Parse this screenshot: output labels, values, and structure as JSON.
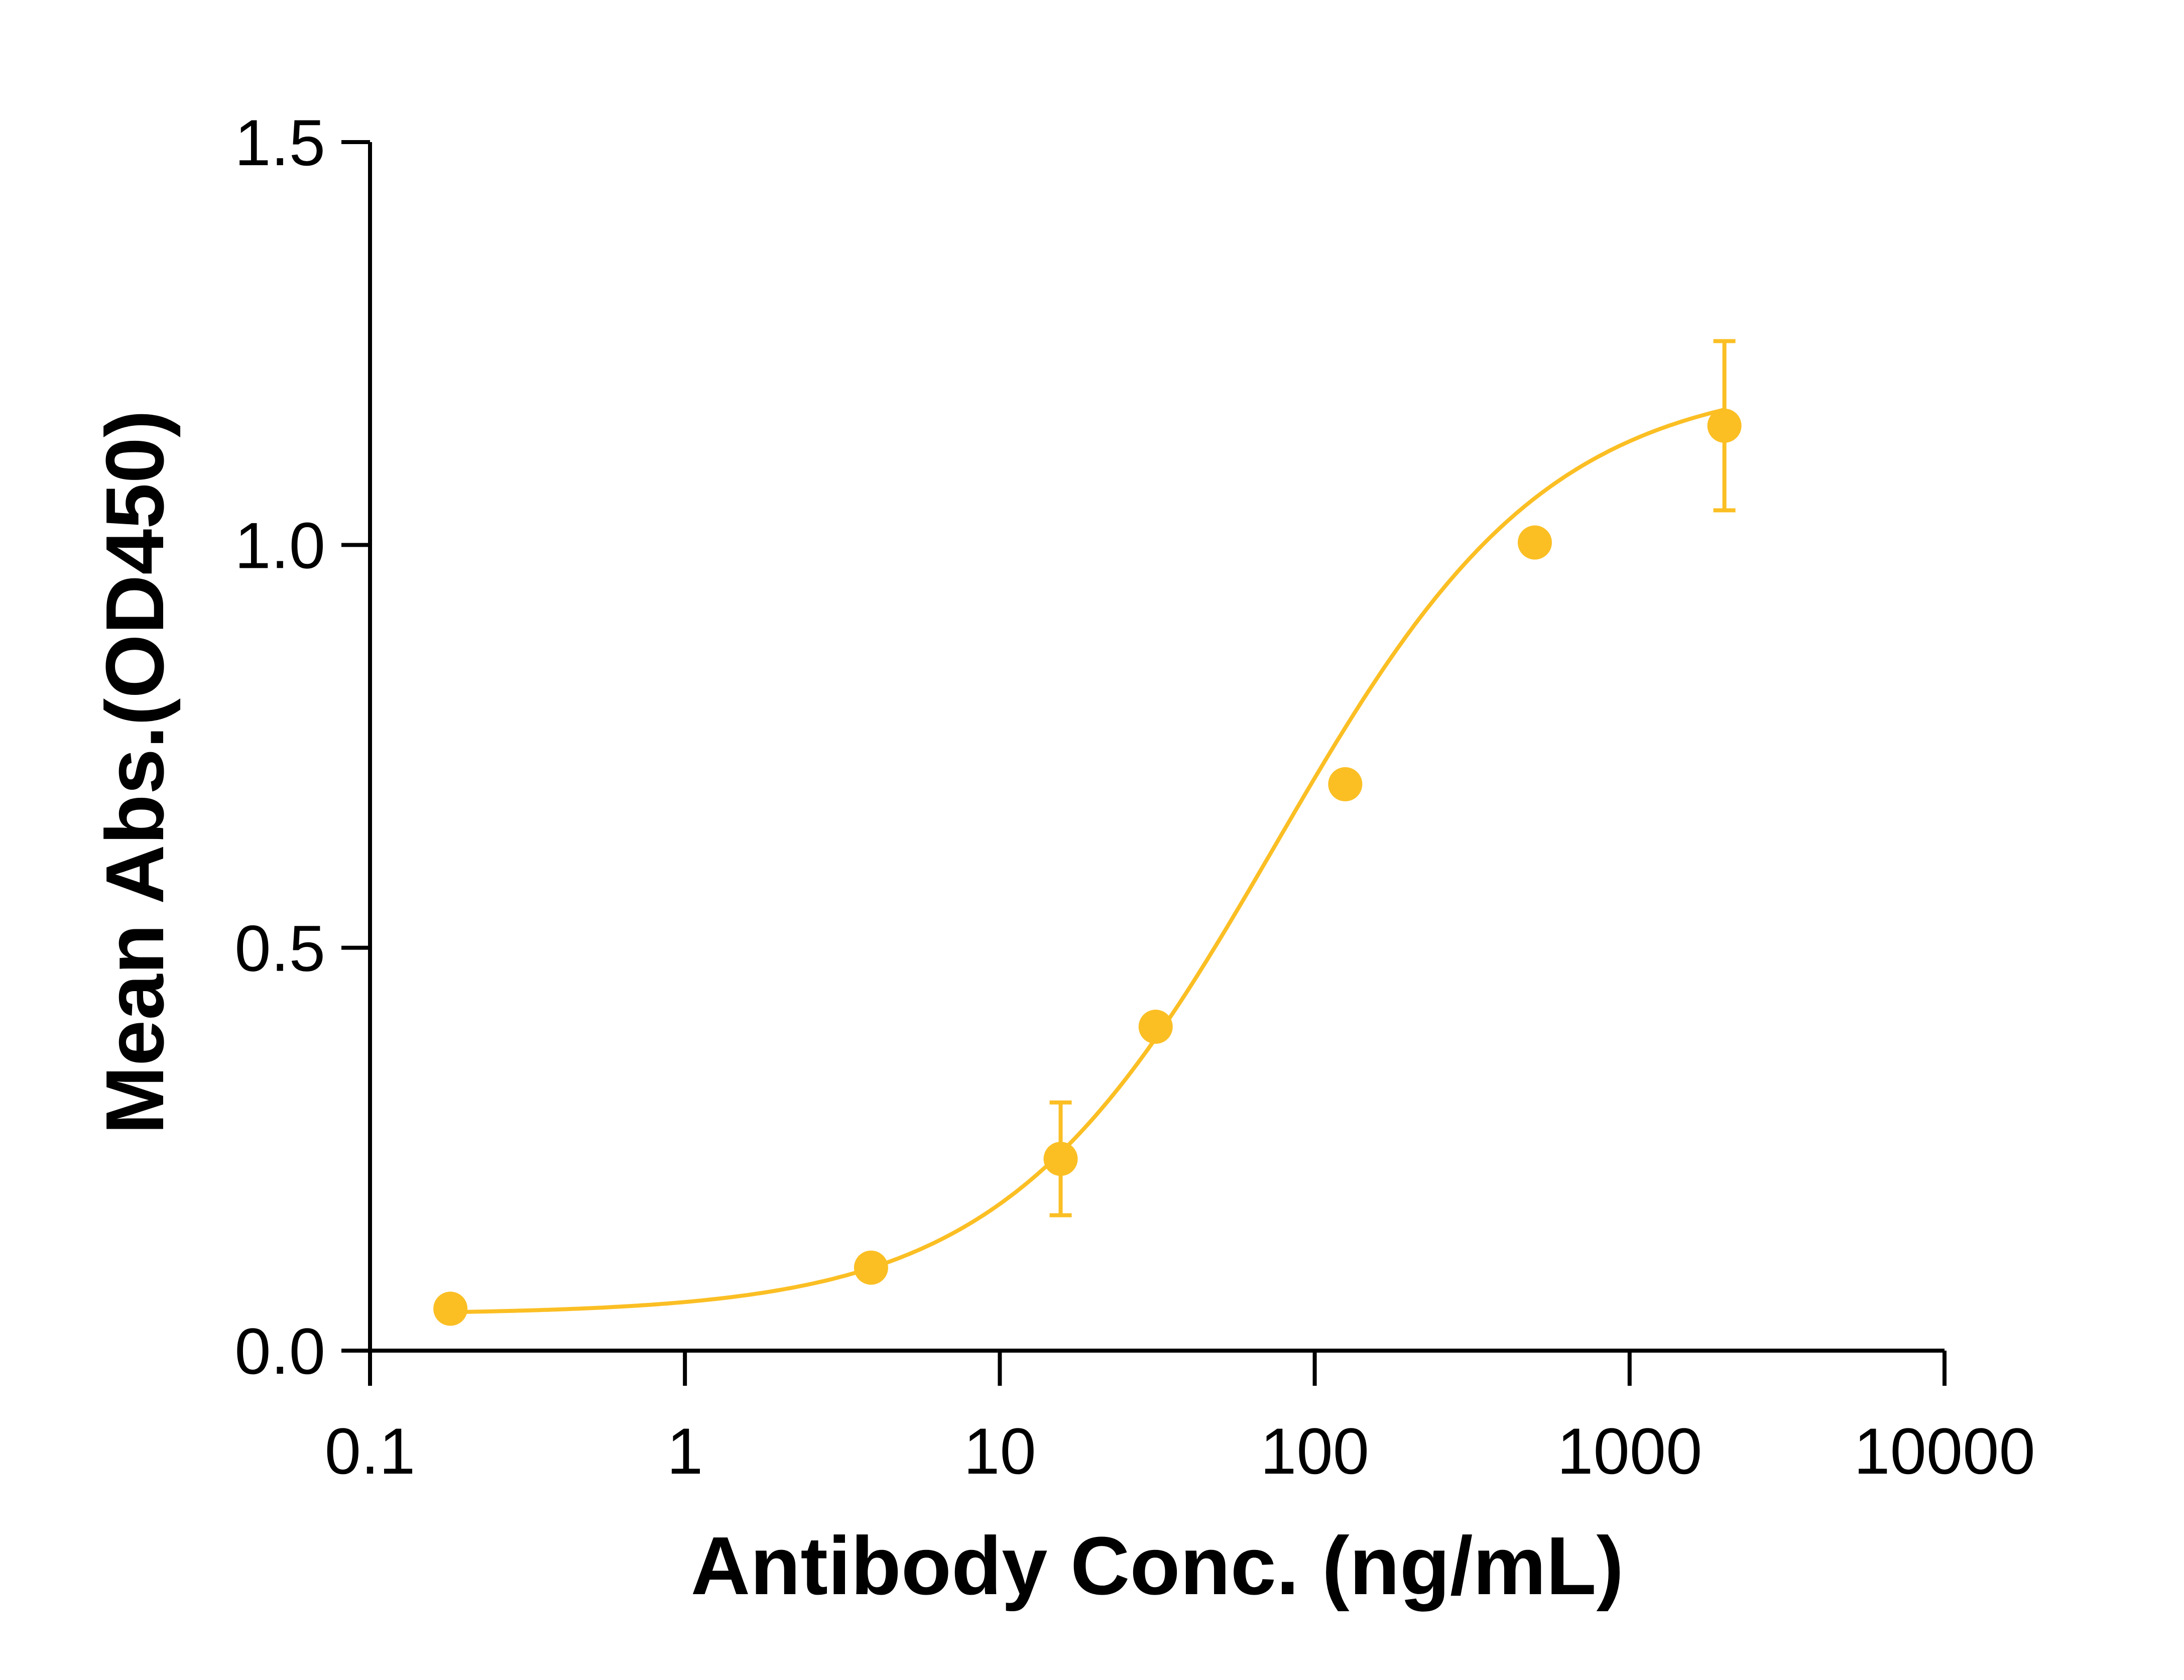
{
  "chart_data": {
    "type": "scatter",
    "xlabel": "Antibody Conc. (ng/mL)",
    "ylabel": "Mean Abs.(OD450)",
    "x_scale": "log",
    "xlim": [
      0.1,
      10000
    ],
    "ylim": [
      0,
      1.5
    ],
    "x_ticks": [
      0.1,
      1,
      10,
      100,
      1000,
      10000
    ],
    "x_tick_labels": [
      "0.1",
      "1",
      "10",
      "100",
      "1000",
      "10000"
    ],
    "y_ticks": [
      0,
      0.5,
      1.0,
      1.5
    ],
    "y_tick_labels": [
      "0.0",
      "0.5",
      "1.0",
      "1.5"
    ],
    "grid": false,
    "legend": "none",
    "color": "#FBBF24",
    "series": [
      {
        "points": [
          {
            "x": 0.18,
            "y": 0.052,
            "err": 0
          },
          {
            "x": 3.9,
            "y": 0.103,
            "err": 0
          },
          {
            "x": 15.6,
            "y": 0.238,
            "err": 0.07
          },
          {
            "x": 31.25,
            "y": 0.402,
            "err": 0
          },
          {
            "x": 125,
            "y": 0.703,
            "err": 0
          },
          {
            "x": 500,
            "y": 1.003,
            "err": 0
          },
          {
            "x": 2000,
            "y": 1.148,
            "err": 0.105
          }
        ],
        "fit": {
          "model": "4PL",
          "bottom": 0.045,
          "top": 1.21,
          "ec50": 75,
          "hill": 1.0
        }
      }
    ]
  }
}
